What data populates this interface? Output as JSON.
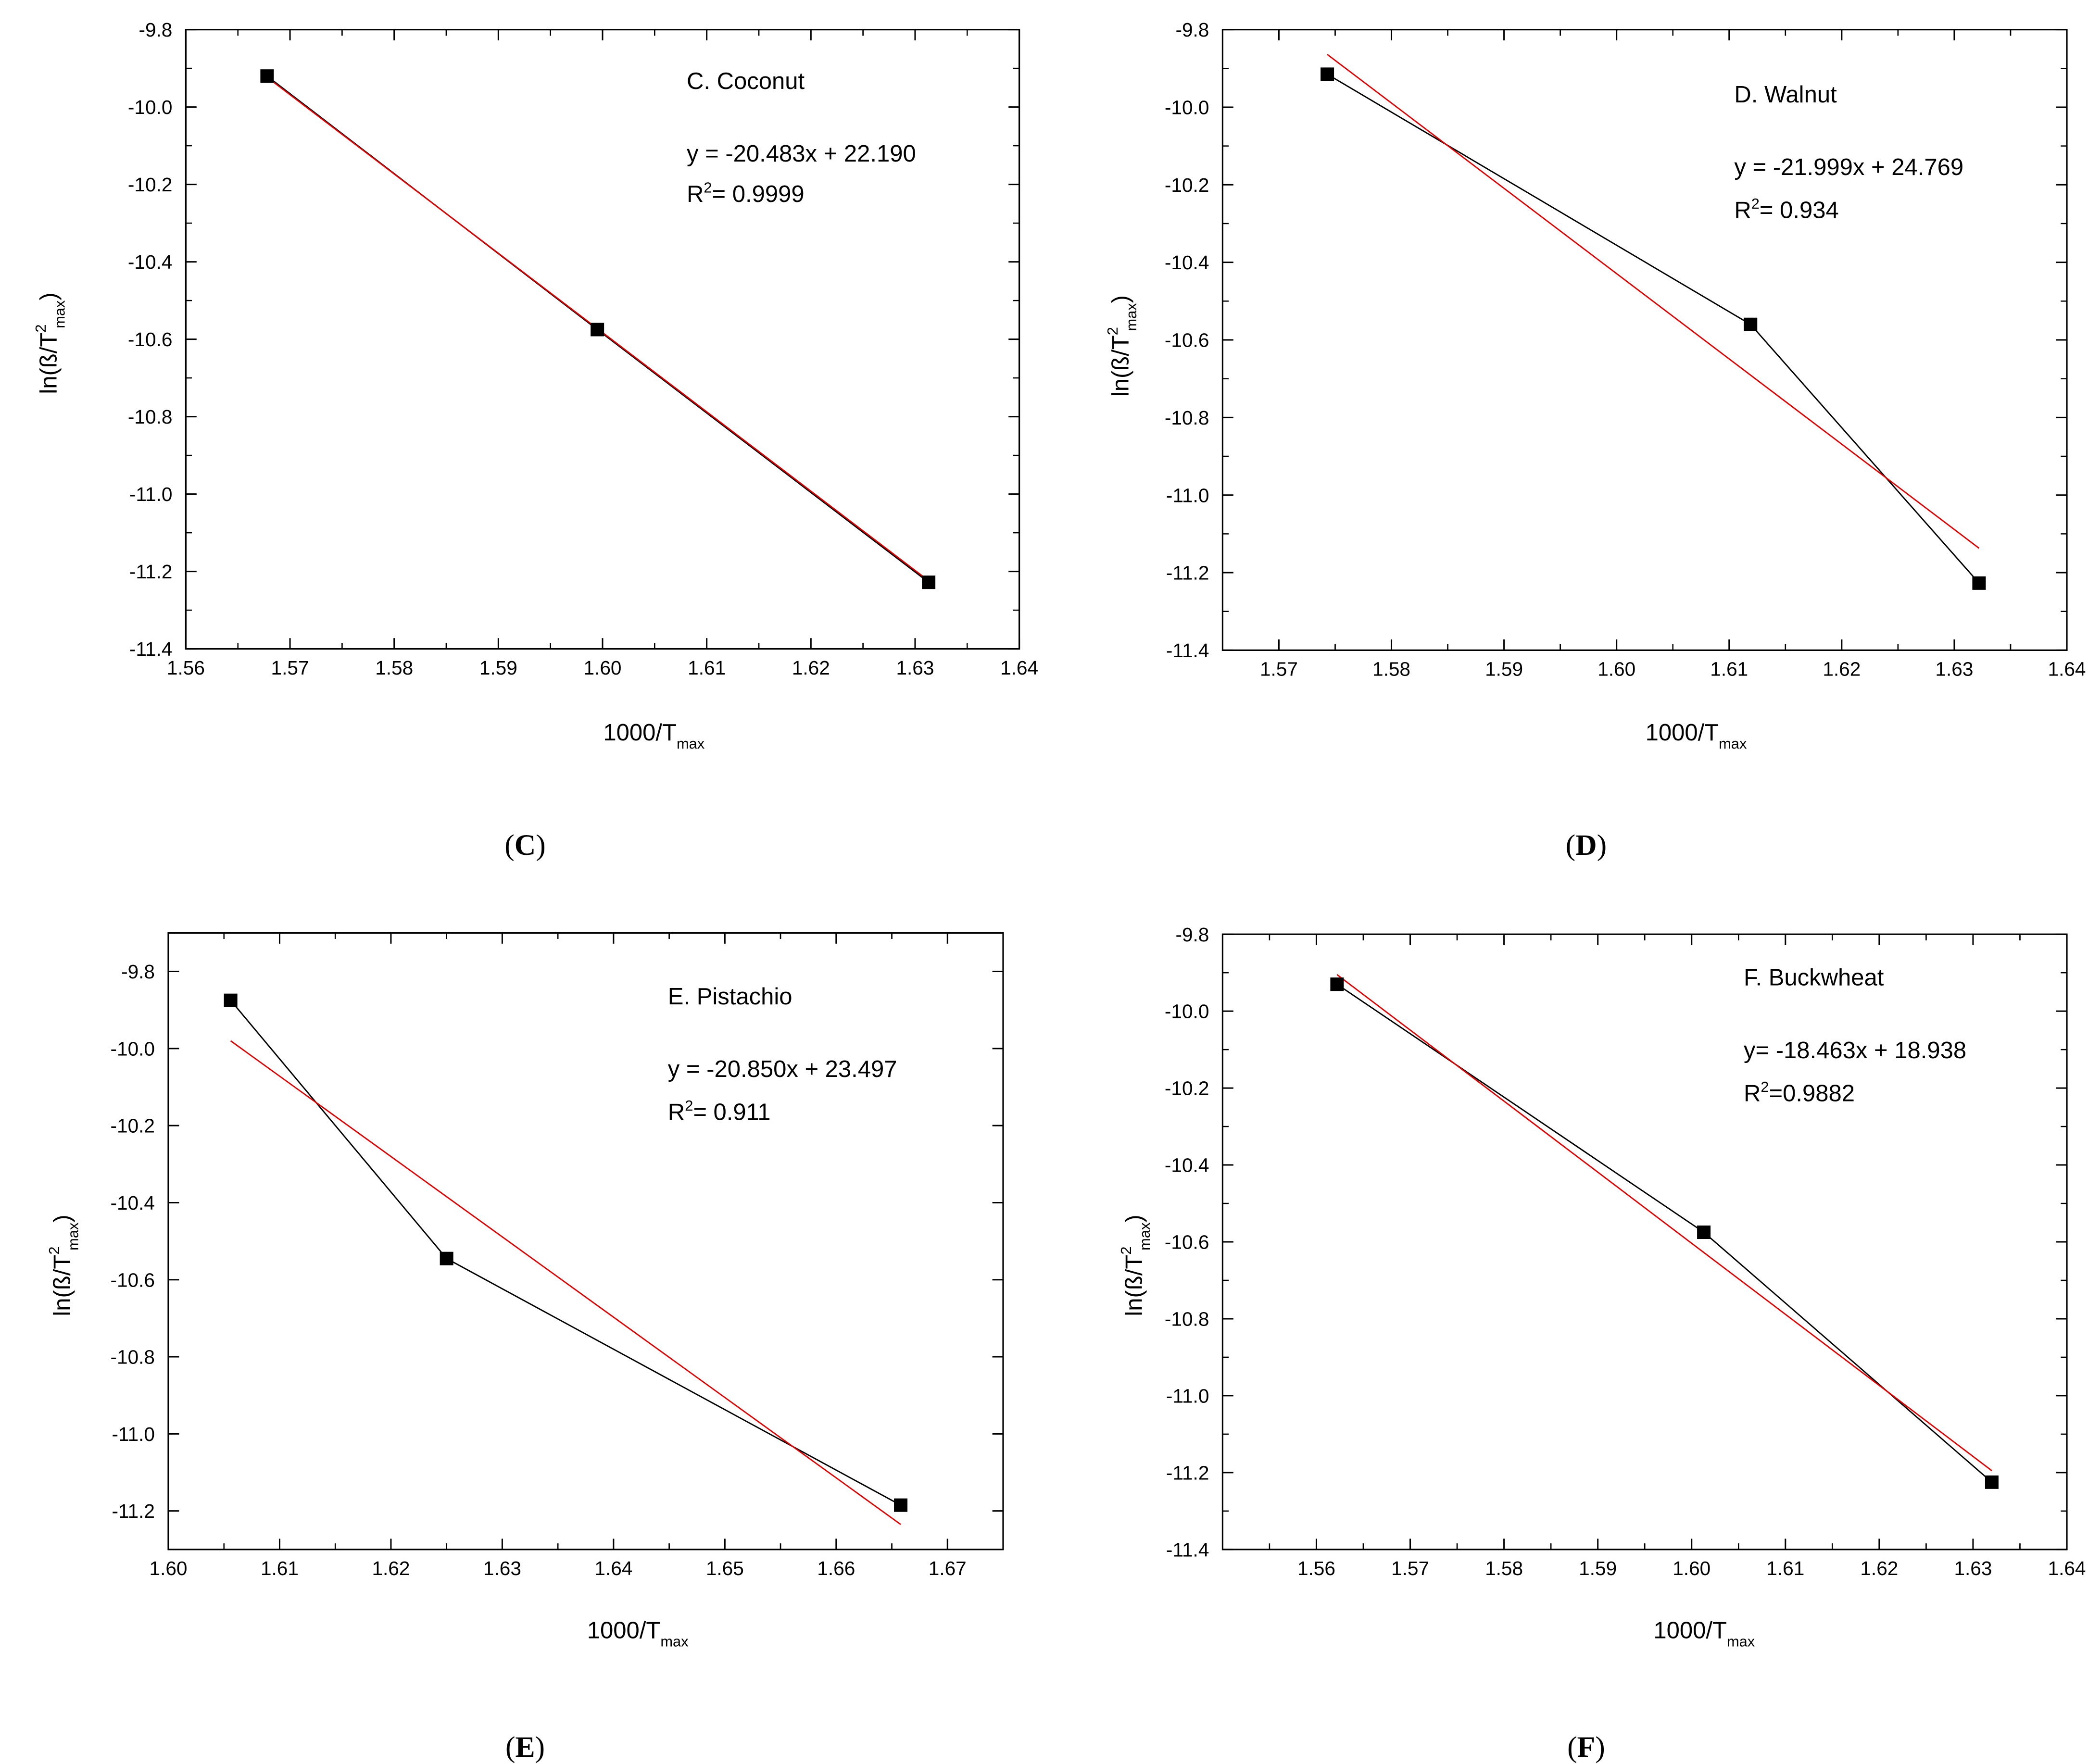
{
  "chart_data": [
    {
      "type": "line",
      "panel_label": {
        "open": "(",
        "letter": "C",
        "close": ")"
      },
      "annotation": {
        "title": "C. Coconut",
        "equation": "y = -20.483x + 22.190",
        "r2_prefix": "R",
        "r2_sup": "2",
        "r2_value": "= 0.9999"
      },
      "xlabel": {
        "main": "1000/T",
        "sub": "max"
      },
      "ylabel": {
        "main": "ln(ß/T",
        "sup": "2",
        "sub": "max",
        "close": ")"
      },
      "xlim": [
        1.56,
        1.64
      ],
      "ylim": [
        -11.4,
        -9.8
      ],
      "xticks": [
        "1.56",
        "1.57",
        "1.58",
        "1.59",
        "1.60",
        "1.61",
        "1.62",
        "1.63",
        "1.64"
      ],
      "yticks": [
        "-9.8",
        "-10.0",
        "-10.2",
        "-10.4",
        "-10.6",
        "-10.8",
        "-11.0",
        "-11.2",
        "-11.4"
      ],
      "series": [
        {
          "name": "data",
          "color": "#000000",
          "x": [
            1.5678,
            1.5995,
            1.6313
          ],
          "y": [
            -9.92,
            -10.575,
            -11.228
          ]
        },
        {
          "name": "fit",
          "color": "#e00000",
          "x": [
            1.5678,
            1.6313
          ],
          "y": [
            -9.923,
            -11.224
          ]
        }
      ]
    },
    {
      "type": "line",
      "panel_label": {
        "open": "(",
        "letter": "D",
        "close": ")"
      },
      "annotation": {
        "title": "D. Walnut",
        "equation": "y = -21.999x + 24.769",
        "r2_prefix": "R",
        "r2_sup": "2",
        "r2_value": "= 0.934"
      },
      "xlabel": {
        "main": "1000/T",
        "sub": "max"
      },
      "ylabel": {
        "main": "ln(ß/T",
        "sup": "2",
        "sub": "max",
        "close": ")"
      },
      "xlim": [
        1.565,
        1.64
      ],
      "ylim": [
        -11.4,
        -9.8
      ],
      "xticks": [
        "1.57",
        "1.58",
        "1.59",
        "1.60",
        "1.61",
        "1.62",
        "1.63",
        "1.64"
      ],
      "yticks": [
        "-9.8",
        "-10.0",
        "-10.2",
        "-10.4",
        "-10.6",
        "-10.8",
        "-11.0",
        "-11.2",
        "-11.4"
      ],
      "series": [
        {
          "name": "data",
          "color": "#000000",
          "x": [
            1.5743,
            1.6119,
            1.6322
          ],
          "y": [
            -9.915,
            -10.56,
            -11.227
          ]
        },
        {
          "name": "fit",
          "color": "#e00000",
          "x": [
            1.5743,
            1.6322
          ],
          "y": [
            -9.864,
            -11.137
          ]
        }
      ]
    },
    {
      "type": "line",
      "panel_label": {
        "open": "(",
        "letter": "E",
        "close": ")"
      },
      "annotation": {
        "title": "E. Pistachio",
        "equation": "y = -20.850x + 23.497",
        "r2_prefix": "R",
        "r2_sup": "2",
        "r2_value": "= 0.911"
      },
      "xlabel": {
        "main": "1000/T",
        "sub": "max"
      },
      "ylabel": {
        "main": "ln(ß/T",
        "sup": "2",
        "sub": "max",
        "close": ")"
      },
      "xlim": [
        1.6,
        1.675
      ],
      "ylim": [
        -11.3,
        -9.7
      ],
      "xticks": [
        "1.60",
        "1.61",
        "1.62",
        "1.63",
        "1.64",
        "1.65",
        "1.66",
        "1.67"
      ],
      "yticks": [
        "-9.8",
        "-10.0",
        "-10.2",
        "-10.4",
        "-10.6",
        "-10.8",
        "-11.0",
        "-11.2"
      ],
      "series": [
        {
          "name": "data",
          "color": "#000000",
          "x": [
            1.6056,
            1.625,
            1.6658
          ],
          "y": [
            -9.875,
            -10.545,
            -11.185
          ]
        },
        {
          "name": "fit",
          "color": "#e00000",
          "x": [
            1.6056,
            1.6658
          ],
          "y": [
            -9.98,
            -11.235
          ]
        }
      ]
    },
    {
      "type": "line",
      "panel_label": {
        "open": "(",
        "letter": "F",
        "close": ")"
      },
      "annotation": {
        "title": "F. Buckwheat",
        "equation": "y= -18.463x + 18.938",
        "r2_prefix": "R",
        "r2_sup": "2",
        "r2_value": "=0.9882"
      },
      "xlabel": {
        "main": "1000/T",
        "sub": "max"
      },
      "ylabel": {
        "main": "ln(ß/T",
        "sup": "2",
        "sub": "max",
        "close": ")"
      },
      "xlim": [
        1.55,
        1.64
      ],
      "ylim": [
        -11.4,
        -9.8
      ],
      "xticks": [
        "1.56",
        "1.57",
        "1.58",
        "1.59",
        "1.60",
        "1.61",
        "1.62",
        "1.63",
        "1.64"
      ],
      "yticks": [
        "-9.8",
        "-10.0",
        "-10.2",
        "-10.4",
        "-10.6",
        "-10.8",
        "-11.0",
        "-11.2",
        "-11.4"
      ],
      "series": [
        {
          "name": "data",
          "color": "#000000",
          "x": [
            1.5622,
            1.6013,
            1.632
          ],
          "y": [
            -9.93,
            -10.575,
            -11.225
          ]
        },
        {
          "name": "fit",
          "color": "#e00000",
          "x": [
            1.5622,
            1.632
          ],
          "y": [
            -9.905,
            -11.195
          ]
        }
      ]
    }
  ]
}
